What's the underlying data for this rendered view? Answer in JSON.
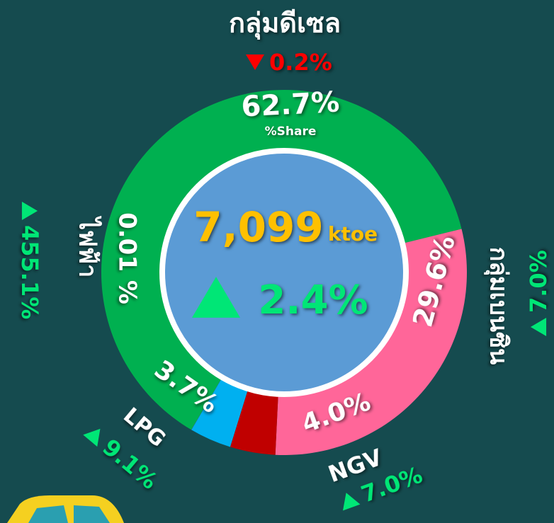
{
  "chart_data": {
    "type": "donut",
    "categories": [
      "กลุ่มดีเซล",
      "กลุ่มเบนซิน",
      "NGV",
      "LPG",
      "ไฟฟ้า"
    ],
    "values": [
      62.7,
      29.6,
      4.0,
      3.7,
      0.01
    ],
    "value_labels": [
      "62.7%",
      "29.6%",
      "4.0%",
      "3.7%",
      "0.01 %"
    ],
    "colors": [
      "#00b050",
      "#ff6699",
      "#c00000",
      "#00b0f0",
      "#7f3fbf"
    ],
    "changes": [
      -0.2,
      7.0,
      7.0,
      9.1,
      455.1
    ],
    "change_labels": [
      "0.2%",
      "7.0%",
      "7.0%",
      "9.1%",
      "455.1%"
    ],
    "share_label": "%Share",
    "total": 7099,
    "total_label": "7,099",
    "unit": "ktoe",
    "total_change": 2.4,
    "total_change_label": "2.4%"
  }
}
